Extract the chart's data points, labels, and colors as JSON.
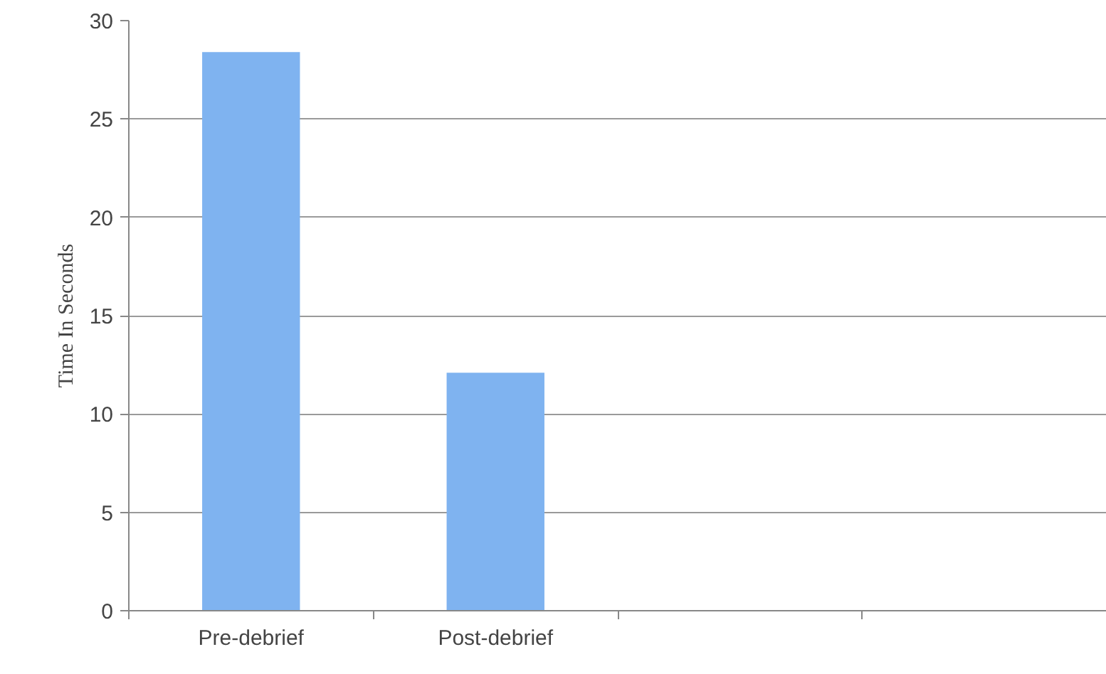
{
  "chart_data": {
    "type": "bar",
    "ylabel": "Time In Seconds",
    "categories": [
      "Pre-debrief",
      "Post-debrief",
      null,
      null
    ],
    "values": [
      28.4,
      12.1,
      null,
      null
    ],
    "color": "#7fb3f0",
    "ylim": [
      0,
      30
    ],
    "yticks": [
      0,
      5,
      10,
      15,
      20,
      25,
      30
    ],
    "grid": "y"
  }
}
